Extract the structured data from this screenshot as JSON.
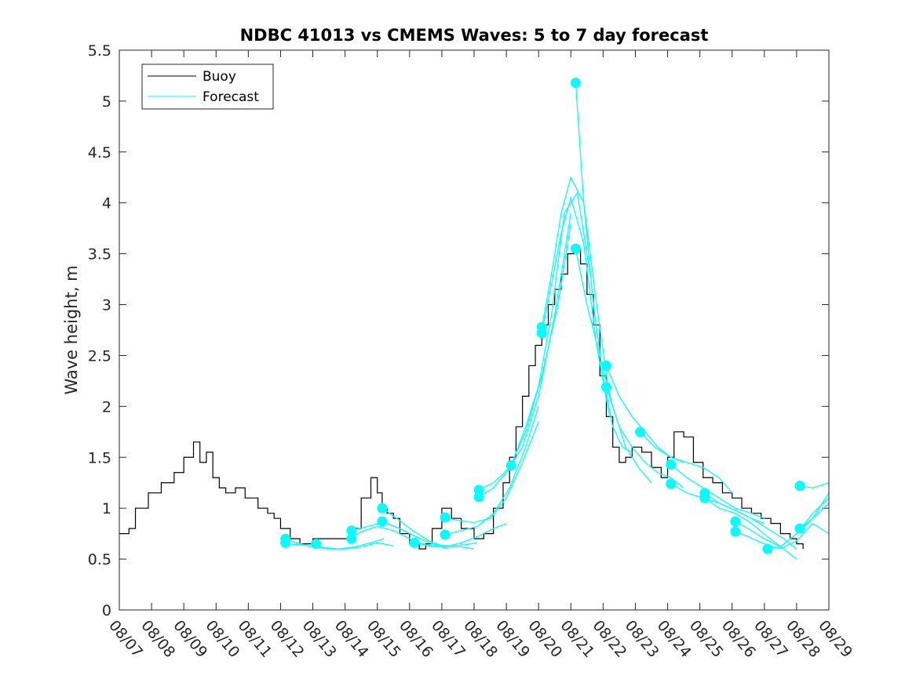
{
  "chart_data": {
    "type": "line",
    "title": "NDBC 41013 vs CMEMS Waves: 5 to 7 day forecast",
    "xlabel": "",
    "ylabel": "Wave height, m",
    "xlim": [
      0,
      22
    ],
    "ylim": [
      0,
      5.5
    ],
    "x_tick_labels": [
      "08/07",
      "08/08",
      "08/09",
      "08/10",
      "08/11",
      "08/12",
      "08/13",
      "08/14",
      "08/15",
      "08/16",
      "08/17",
      "08/18",
      "08/19",
      "08/20",
      "08/21",
      "08/22",
      "08/23",
      "08/24",
      "08/25",
      "08/26",
      "08/27",
      "08/28",
      "08/29"
    ],
    "y_ticks": [
      0,
      0.5,
      1,
      1.5,
      2,
      2.5,
      3,
      3.5,
      4,
      4.5,
      5,
      5.5
    ],
    "y_tick_labels": [
      "0",
      "0.5",
      "1",
      "1.5",
      "2",
      "2.5",
      "3",
      "3.5",
      "4",
      "4.5",
      "5",
      "5.5"
    ],
    "legend": {
      "position": "top-left",
      "entries": [
        {
          "label": "Buoy",
          "color": "#000000"
        },
        {
          "label": "Forecast",
          "color": "#00FFFF"
        }
      ]
    },
    "colors": {
      "buoy": "#000000",
      "forecast": "#00FFFF"
    },
    "buoy": {
      "name": "Buoy",
      "x": [
        0.0,
        0.3,
        0.5,
        0.9,
        1.3,
        1.7,
        2.0,
        2.3,
        2.5,
        2.7,
        2.9,
        3.1,
        3.3,
        3.6,
        3.9,
        4.3,
        4.6,
        4.8,
        5.0,
        5.3,
        5.6,
        6.0,
        6.4,
        6.8,
        7.2,
        7.5,
        7.8,
        8.0,
        8.15,
        8.3,
        8.5,
        8.7,
        9.0,
        9.3,
        9.5,
        9.7,
        10.0,
        10.3,
        10.6,
        11.0,
        11.3,
        11.6,
        11.9,
        12.1,
        12.3,
        12.5,
        12.7,
        12.9,
        13.1,
        13.3,
        13.5,
        13.7,
        13.9,
        14.1,
        14.3,
        14.5,
        14.7,
        14.9,
        15.1,
        15.3,
        15.5,
        15.7,
        15.9,
        16.2,
        16.5,
        16.8,
        17.0,
        17.2,
        17.5,
        17.8,
        18.1,
        18.4,
        18.7,
        19.0,
        19.3,
        19.6,
        19.9,
        20.2,
        20.5,
        20.8,
        21.0,
        21.2
      ],
      "y": [
        0.75,
        0.8,
        1.0,
        1.15,
        1.25,
        1.35,
        1.5,
        1.65,
        1.45,
        1.55,
        1.3,
        1.2,
        1.15,
        1.2,
        1.1,
        1.0,
        0.95,
        0.9,
        0.8,
        0.7,
        0.65,
        0.7,
        0.7,
        0.7,
        0.8,
        1.1,
        1.3,
        1.15,
        1.0,
        0.95,
        0.9,
        0.75,
        0.65,
        0.6,
        0.65,
        0.8,
        1.0,
        0.9,
        0.8,
        0.7,
        0.75,
        1.0,
        1.25,
        1.5,
        1.8,
        2.1,
        2.4,
        2.6,
        2.8,
        3.0,
        3.15,
        3.3,
        3.5,
        3.55,
        3.4,
        3.1,
        2.8,
        2.3,
        1.9,
        1.6,
        1.45,
        1.5,
        1.6,
        1.55,
        1.4,
        1.3,
        1.5,
        1.75,
        1.7,
        1.45,
        1.3,
        1.25,
        1.15,
        1.1,
        1.0,
        0.95,
        0.9,
        0.85,
        0.75,
        0.7,
        0.65,
        0.6
      ]
    },
    "forecast_series": [
      {
        "name": "Forecast 1",
        "x": [
          5.15,
          5.5,
          6.0,
          6.5,
          7.0,
          7.5,
          8.0,
          8.5
        ],
        "y": [
          0.7,
          0.66,
          0.62,
          0.6,
          0.6,
          0.62,
          0.66,
          0.63
        ]
      },
      {
        "name": "Forecast 2",
        "x": [
          5.15,
          5.6,
          6.2,
          6.8,
          7.3,
          7.8,
          8.2
        ],
        "y": [
          0.65,
          0.64,
          0.62,
          0.6,
          0.62,
          0.66,
          0.7
        ]
      },
      {
        "name": "Forecast 3",
        "x": [
          7.2,
          7.6,
          8.0,
          8.5,
          9.0,
          9.5,
          10.0
        ],
        "y": [
          0.72,
          0.78,
          0.82,
          0.78,
          0.7,
          0.64,
          0.62
        ]
      },
      {
        "name": "Forecast 4",
        "x": [
          7.2,
          7.7,
          8.2,
          8.7,
          9.2,
          9.7,
          10.2
        ],
        "y": [
          0.78,
          0.82,
          0.86,
          0.8,
          0.72,
          0.65,
          0.6
        ]
      },
      {
        "name": "Forecast 5",
        "x": [
          8.15,
          8.6,
          9.1,
          9.6,
          10.1,
          10.6,
          11.0
        ],
        "y": [
          1.0,
          0.9,
          0.78,
          0.68,
          0.62,
          0.62,
          0.6
        ]
      },
      {
        "name": "Forecast 6",
        "x": [
          8.15,
          8.7,
          9.2,
          9.7,
          10.2,
          10.7,
          11.1
        ],
        "y": [
          0.87,
          0.8,
          0.72,
          0.65,
          0.63,
          0.64,
          0.66
        ]
      },
      {
        "name": "Forecast 7",
        "x": [
          9.15,
          9.6,
          10.1,
          10.6,
          11.1,
          11.6,
          12.0
        ],
        "y": [
          0.66,
          0.63,
          0.62,
          0.66,
          0.72,
          0.8,
          0.85
        ]
      },
      {
        "name": "Forecast 8",
        "x": [
          10.1,
          10.5,
          11.0,
          11.5,
          12.0,
          12.5,
          13.0
        ],
        "y": [
          0.91,
          0.88,
          0.86,
          0.9,
          1.1,
          1.45,
          1.85
        ]
      },
      {
        "name": "Forecast 9",
        "x": [
          10.1,
          10.6,
          11.1,
          11.6,
          12.1,
          12.6,
          13.0
        ],
        "y": [
          0.74,
          0.78,
          0.82,
          0.95,
          1.2,
          1.6,
          2.0
        ]
      },
      {
        "name": "Forecast 10",
        "x": [
          11.15,
          11.6,
          12.1,
          12.6,
          13.1,
          13.6,
          14.0
        ],
        "y": [
          1.18,
          1.25,
          1.4,
          1.75,
          2.3,
          3.0,
          3.8
        ]
      },
      {
        "name": "Forecast 11",
        "x": [
          11.15,
          11.6,
          12.0,
          12.5,
          13.0,
          13.5,
          14.0
        ],
        "y": [
          1.11,
          1.2,
          1.35,
          1.6,
          2.1,
          2.9,
          3.9
        ]
      },
      {
        "name": "Forecast 12",
        "x": [
          12.15,
          12.6,
          13.0,
          13.4,
          13.8,
          14.2,
          14.6
        ],
        "y": [
          1.42,
          1.8,
          2.2,
          2.9,
          3.9,
          4.1,
          3.3
        ]
      },
      {
        "name": "Forecast 13",
        "x": [
          13.1,
          13.4,
          13.7,
          14.0,
          14.4,
          14.8,
          15.2
        ],
        "y": [
          2.78,
          3.3,
          3.9,
          4.25,
          4.0,
          3.0,
          2.1
        ]
      },
      {
        "name": "Forecast 14",
        "x": [
          13.1,
          13.4,
          13.7,
          14.0,
          14.4,
          14.8,
          15.2
        ],
        "y": [
          2.72,
          3.2,
          3.7,
          4.05,
          3.6,
          2.6,
          1.9
        ]
      },
      {
        "name": "Forecast 15",
        "x": [
          14.15,
          14.4,
          14.7,
          15.0,
          15.3,
          15.6,
          15.9
        ],
        "y": [
          5.18,
          4.0,
          3.0,
          2.3,
          1.8,
          1.6,
          1.55
        ]
      },
      {
        "name": "Forecast 16",
        "x": [
          14.15,
          14.5,
          14.9,
          15.3,
          15.7,
          16.1,
          16.5
        ],
        "y": [
          3.55,
          3.0,
          2.5,
          2.0,
          1.6,
          1.4,
          1.25
        ]
      },
      {
        "name": "Forecast 17",
        "x": [
          15.1,
          15.5,
          15.9,
          16.3,
          16.7,
          17.1,
          17.5
        ],
        "y": [
          2.4,
          2.1,
          1.9,
          1.75,
          1.6,
          1.5,
          1.45
        ]
      },
      {
        "name": "Forecast 18",
        "x": [
          15.1,
          15.5,
          15.9,
          16.3,
          16.7,
          17.1,
          17.5
        ],
        "y": [
          2.19,
          1.8,
          1.6,
          1.45,
          1.35,
          1.3,
          1.2
        ]
      },
      {
        "name": "Forecast 19",
        "x": [
          16.15,
          16.6,
          17.1,
          17.6,
          18.1,
          18.6,
          19.0
        ],
        "y": [
          1.75,
          1.6,
          1.5,
          1.45,
          1.4,
          1.3,
          1.15
        ]
      },
      {
        "name": "Forecast 20",
        "x": [
          17.1,
          17.6,
          18.1,
          18.6,
          19.1,
          19.6,
          20.0
        ],
        "y": [
          1.43,
          1.3,
          1.2,
          1.1,
          1.0,
          0.95,
          0.9
        ]
      },
      {
        "name": "Forecast 21",
        "x": [
          17.1,
          17.6,
          18.1,
          18.6,
          19.1,
          19.6,
          20.0
        ],
        "y": [
          1.24,
          1.15,
          1.1,
          1.05,
          0.98,
          0.9,
          0.85
        ]
      },
      {
        "name": "Forecast 22",
        "x": [
          18.15,
          18.6,
          19.1,
          19.6,
          20.1,
          20.6,
          21.0
        ],
        "y": [
          1.15,
          1.05,
          0.98,
          0.9,
          0.8,
          0.7,
          0.6
        ]
      },
      {
        "name": "Forecast 23",
        "x": [
          18.15,
          18.6,
          19.1,
          19.6,
          20.1,
          20.6,
          21.0
        ],
        "y": [
          1.1,
          1.0,
          0.95,
          0.85,
          0.72,
          0.6,
          0.5
        ]
      },
      {
        "name": "Forecast 24",
        "x": [
          19.1,
          19.5,
          20.0,
          20.5,
          21.0,
          21.5,
          22.0
        ],
        "y": [
          0.87,
          0.8,
          0.7,
          0.62,
          0.75,
          0.95,
          1.1
        ]
      },
      {
        "name": "Forecast 25",
        "x": [
          19.1,
          19.5,
          20.0,
          20.5,
          21.0,
          21.5,
          22.0
        ],
        "y": [
          0.77,
          0.72,
          0.65,
          0.6,
          0.68,
          0.85,
          0.75
        ]
      },
      {
        "name": "Forecast 26",
        "x": [
          20.1,
          20.5,
          21.0,
          21.5,
          22.0
        ],
        "y": [
          0.6,
          0.62,
          0.75,
          0.9,
          1.05
        ]
      },
      {
        "name": "Forecast 27",
        "x": [
          21.1,
          21.5,
          22.0
        ],
        "y": [
          1.22,
          1.2,
          1.25
        ]
      },
      {
        "name": "Forecast 28",
        "x": [
          21.1,
          21.5,
          22.0
        ],
        "y": [
          0.8,
          0.9,
          1.15
        ]
      }
    ],
    "forecast_markers": {
      "x": [
        5.15,
        5.15,
        6.1,
        7.2,
        7.2,
        8.15,
        8.15,
        9.15,
        10.1,
        10.1,
        11.15,
        11.15,
        12.15,
        13.1,
        13.1,
        14.15,
        14.15,
        15.1,
        15.1,
        16.15,
        17.1,
        17.1,
        18.15,
        18.15,
        19.1,
        19.1,
        20.1,
        21.1,
        21.1
      ],
      "y": [
        0.7,
        0.66,
        0.65,
        0.78,
        0.7,
        1.0,
        0.87,
        0.66,
        0.91,
        0.74,
        1.18,
        1.11,
        1.42,
        2.78,
        2.72,
        5.18,
        3.55,
        2.4,
        2.19,
        1.75,
        1.43,
        1.24,
        1.15,
        1.1,
        0.87,
        0.77,
        0.6,
        1.22,
        0.8
      ]
    }
  }
}
